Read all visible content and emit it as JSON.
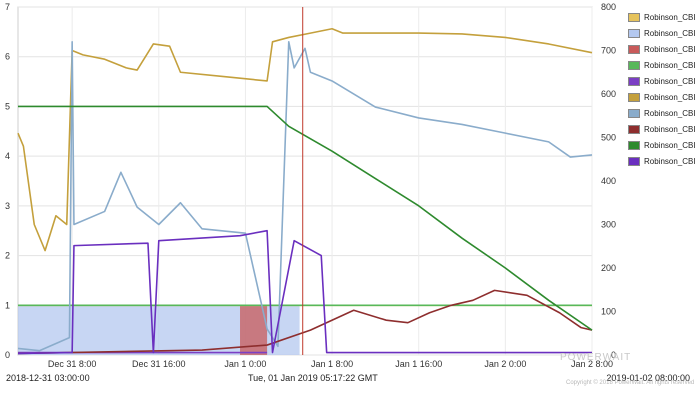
{
  "chart_data": {
    "type": "line",
    "title": "",
    "xlabel": "",
    "ylabel": "",
    "x_range": [
      "2018-12-31 03:00:00",
      "2019-01-02 08:00:00"
    ],
    "cursor_time": "2019-01-01 05:17:22",
    "ylim_left": [
      0,
      7
    ],
    "ylim_right": [
      0,
      800
    ],
    "yticks_left": [
      "0",
      "1",
      "2",
      "3",
      "4",
      "5",
      "6",
      "7"
    ],
    "yticks_right": [
      "0",
      "100",
      "200",
      "300",
      "400",
      "500",
      "600",
      "700",
      "800"
    ],
    "xticks": [
      {
        "t": "2018-12-31 08:00",
        "label": "Dec 31 8:00"
      },
      {
        "t": "2018-12-31 16:00",
        "label": "Dec 31 16:00"
      },
      {
        "t": "2019-01-01 00:00",
        "label": "Jan 1 0:00"
      },
      {
        "t": "2019-01-01 08:00",
        "label": "Jan 1 8:00"
      },
      {
        "t": "2019-01-01 16:00",
        "label": "Jan 1 16:00"
      },
      {
        "t": "2019-01-02 00:00",
        "label": "Jan 2 0:00"
      },
      {
        "t": "2019-01-02 08:00",
        "label": "Jan 2 8:00"
      }
    ],
    "grid": true,
    "legend_position": "right",
    "series": [
      {
        "name": "Robinson_CBI",
        "color": "#e6c35c",
        "axis": "left",
        "role": "flat-line",
        "points": [
          [
            "2018-12-31 03:00",
            1.0
          ],
          [
            "2019-01-02 08:00",
            1.0
          ]
        ]
      },
      {
        "name": "Robinson_CBI",
        "color": "#b4c8ef",
        "axis": "left",
        "role": "area",
        "points": [
          [
            "2018-12-31 03:00",
            1.0
          ],
          [
            "2019-01-01 05:00",
            1.0
          ]
        ]
      },
      {
        "name": "Robinson_CBI",
        "color": "#c85a5a",
        "axis": "left",
        "role": "area",
        "points": [
          [
            "2018-12-31 23:30",
            1.0
          ],
          [
            "2019-01-01 02:00",
            1.0
          ]
        ]
      },
      {
        "name": "Robinson_CBI",
        "color": "#58b85a",
        "axis": "left",
        "role": "line",
        "points": [
          [
            "2018-12-31 03:00",
            1.0
          ],
          [
            "2019-01-02 08:00",
            1.0
          ]
        ]
      },
      {
        "name": "Robinson_CBI",
        "color": "#7b3fc4",
        "axis": "left",
        "role": "line",
        "points": [
          [
            "2018-12-31 03:00",
            0.05
          ],
          [
            "2019-01-01 02:00",
            0.05
          ]
        ]
      },
      {
        "name": "Robinson_CBI",
        "color": "#c4a03c",
        "axis": "right",
        "role": "line",
        "points": [
          [
            "2018-12-31 03:00",
            510
          ],
          [
            "2018-12-31 03:30",
            480
          ],
          [
            "2018-12-31 04:30",
            300
          ],
          [
            "2018-12-31 05:30",
            240
          ],
          [
            "2018-12-31 06:30",
            320
          ],
          [
            "2018-12-31 07:30",
            300
          ],
          [
            "2018-12-31 08:00",
            700
          ],
          [
            "2018-12-31 09:00",
            690
          ],
          [
            "2018-12-31 11:00",
            680
          ],
          [
            "2018-12-31 13:00",
            660
          ],
          [
            "2018-12-31 14:00",
            655
          ],
          [
            "2018-12-31 15:30",
            715
          ],
          [
            "2018-12-31 17:00",
            710
          ],
          [
            "2018-12-31 18:00",
            650
          ],
          [
            "2018-12-31 22:00",
            640
          ],
          [
            "2019-01-01 02:00",
            630
          ],
          [
            "2019-01-01 02:30",
            720
          ],
          [
            "2019-01-01 04:00",
            730
          ],
          [
            "2019-01-01 06:00",
            740
          ],
          [
            "2019-01-01 08:00",
            750
          ],
          [
            "2019-01-01 09:00",
            740
          ],
          [
            "2019-01-01 12:00",
            740
          ],
          [
            "2019-01-01 16:00",
            740
          ],
          [
            "2019-01-01 20:00",
            738
          ],
          [
            "2019-01-02 00:00",
            730
          ],
          [
            "2019-01-02 04:00",
            715
          ],
          [
            "2019-01-02 08:00",
            695
          ]
        ]
      },
      {
        "name": "Robinson_CBI",
        "color": "#8aaccb",
        "axis": "right",
        "role": "line",
        "points": [
          [
            "2018-12-31 03:00",
            15
          ],
          [
            "2018-12-31 05:00",
            10
          ],
          [
            "2018-12-31 07:45",
            40
          ],
          [
            "2018-12-31 08:00",
            720
          ],
          [
            "2018-12-31 08:10",
            300
          ],
          [
            "2018-12-31 11:00",
            330
          ],
          [
            "2018-12-31 12:30",
            420
          ],
          [
            "2018-12-31 14:00",
            340
          ],
          [
            "2018-12-31 16:00",
            300
          ],
          [
            "2018-12-31 18:00",
            350
          ],
          [
            "2018-12-31 20:00",
            290
          ],
          [
            "2019-01-01 00:00",
            280
          ],
          [
            "2019-01-01 02:00",
            60
          ],
          [
            "2019-01-01 03:00",
            20
          ],
          [
            "2019-01-01 04:00",
            720
          ],
          [
            "2019-01-01 04:30",
            660
          ],
          [
            "2019-01-01 05:30",
            705
          ],
          [
            "2019-01-01 06:00",
            650
          ],
          [
            "2019-01-01 08:00",
            630
          ],
          [
            "2019-01-01 12:00",
            570
          ],
          [
            "2019-01-01 16:00",
            545
          ],
          [
            "2019-01-01 20:00",
            530
          ],
          [
            "2019-01-02 00:00",
            510
          ],
          [
            "2019-01-02 04:00",
            490
          ],
          [
            "2019-01-02 06:00",
            455
          ],
          [
            "2019-01-02 08:00",
            460
          ]
        ]
      },
      {
        "name": "Robinson_CBI",
        "color": "#8e2e2e",
        "axis": "left",
        "role": "line",
        "points": [
          [
            "2018-12-31 03:00",
            0.03
          ],
          [
            "2018-12-31 20:00",
            0.1
          ],
          [
            "2019-01-01 02:00",
            0.2
          ],
          [
            "2019-01-01 06:00",
            0.5
          ],
          [
            "2019-01-01 10:00",
            0.9
          ],
          [
            "2019-01-01 13:00",
            0.7
          ],
          [
            "2019-01-01 15:00",
            0.65
          ],
          [
            "2019-01-01 17:00",
            0.85
          ],
          [
            "2019-01-01 19:00",
            1.0
          ],
          [
            "2019-01-01 21:00",
            1.1
          ],
          [
            "2019-01-01 23:00",
            1.3
          ],
          [
            "2019-01-02 02:00",
            1.2
          ],
          [
            "2019-01-02 05:00",
            0.85
          ],
          [
            "2019-01-02 07:00",
            0.55
          ],
          [
            "2019-01-02 08:00",
            0.5
          ]
        ]
      },
      {
        "name": "Robinson_CBI",
        "color": "#2e8a2e",
        "axis": "left",
        "role": "line",
        "points": [
          [
            "2018-12-31 03:00",
            5.0
          ],
          [
            "2019-01-01 02:00",
            5.0
          ],
          [
            "2019-01-01 04:00",
            4.6
          ],
          [
            "2019-01-01 08:00",
            4.1
          ],
          [
            "2019-01-01 12:00",
            3.55
          ],
          [
            "2019-01-01 16:00",
            3.0
          ],
          [
            "2019-01-01 20:00",
            2.35
          ],
          [
            "2019-01-02 00:00",
            1.75
          ],
          [
            "2019-01-02 04:00",
            1.1
          ],
          [
            "2019-01-02 08:00",
            0.5
          ]
        ]
      },
      {
        "name": "Robinson_CBI",
        "color": "#6a2fbf",
        "axis": "left",
        "role": "line",
        "points": [
          [
            "2018-12-31 03:00",
            0.03
          ],
          [
            "2018-12-31 08:00",
            0.05
          ],
          [
            "2018-12-31 08:10",
            2.2
          ],
          [
            "2018-12-31 15:00",
            2.25
          ],
          [
            "2018-12-31 15:30",
            0.05
          ],
          [
            "2018-12-31 16:00",
            2.3
          ],
          [
            "2018-12-31 23:30",
            2.4
          ],
          [
            "2019-01-01 02:00",
            2.5
          ],
          [
            "2019-01-01 02:30",
            0.05
          ],
          [
            "2019-01-01 04:30",
            2.3
          ],
          [
            "2019-01-01 07:00",
            2.0
          ],
          [
            "2019-01-01 07:30",
            0.05
          ],
          [
            "2019-01-02 08:00",
            0.05
          ]
        ]
      }
    ]
  },
  "x_axis": {
    "start_label": "2018-12-31 03:00:00",
    "cursor_label": "Tue, 01 Jan 2019 05:17:22 GMT",
    "end_label": "2019-01-02 08:00:00"
  },
  "legend": {
    "items": [
      {
        "label": "Robinson_CBI",
        "color": "#e6c35c"
      },
      {
        "label": "Robinson_CBI",
        "color": "#b4c8ef"
      },
      {
        "label": "Robinson_CBI",
        "color": "#c85a5a"
      },
      {
        "label": "Robinson_CBI",
        "color": "#58b85a"
      },
      {
        "label": "Robinson_CBI",
        "color": "#7b3fc4"
      },
      {
        "label": "Robinson_CBI",
        "color": "#c4a03c"
      },
      {
        "label": "Robinson_CBI",
        "color": "#8aaccb"
      },
      {
        "label": "Robinson_CBI",
        "color": "#8e2e2e"
      },
      {
        "label": "Robinson_CBI",
        "color": "#2e8a2e"
      },
      {
        "label": "Robinson_CBI",
        "color": "#6a2fbf"
      }
    ]
  },
  "watermark": {
    "text": "POWERWAIT",
    "copyright": "Copyright © 2018 PowerWait. All rights reserved"
  }
}
